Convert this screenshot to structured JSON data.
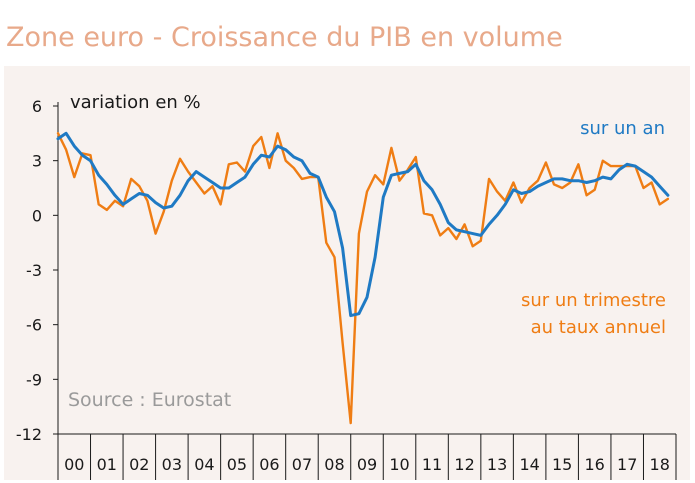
{
  "chart_data": {
    "type": "line",
    "title": "Zone euro - Croissance du PIB en volume",
    "ylabel": "variation en %",
    "source": "Source : Eurostat",
    "ylim": [
      -12,
      6
    ],
    "yticks": [
      6,
      3,
      0,
      -3,
      -6,
      -9,
      -12
    ],
    "ytick_labels": [
      "6",
      "3",
      "0",
      "-3",
      "-6",
      "-9",
      "-12"
    ],
    "x_range": [
      2000.0,
      2019.0
    ],
    "year_labels": [
      "00",
      "01",
      "02",
      "03",
      "04",
      "05",
      "06",
      "07",
      "08",
      "09",
      "10",
      "11",
      "12",
      "13",
      "14",
      "15",
      "16",
      "17",
      "18"
    ],
    "grid": false,
    "colors": {
      "annual": "#1f7ac4",
      "quarterly": "#ef7d14",
      "background": "#f8f2ef",
      "title": "#e8a98a"
    },
    "series": [
      {
        "key": "annual",
        "name": "sur un an",
        "x": [
          2000.0,
          2000.25,
          2000.5,
          2000.75,
          2001.0,
          2001.25,
          2001.5,
          2001.75,
          2002.0,
          2002.25,
          2002.5,
          2002.75,
          2003.0,
          2003.25,
          2003.5,
          2003.75,
          2004.0,
          2004.25,
          2004.5,
          2004.75,
          2005.0,
          2005.25,
          2005.5,
          2005.75,
          2006.0,
          2006.25,
          2006.5,
          2006.75,
          2007.0,
          2007.25,
          2007.5,
          2007.75,
          2008.0,
          2008.25,
          2008.5,
          2008.75,
          2009.0,
          2009.25,
          2009.5,
          2009.75,
          2010.0,
          2010.25,
          2010.5,
          2010.75,
          2011.0,
          2011.25,
          2011.5,
          2011.75,
          2012.0,
          2012.25,
          2012.5,
          2012.75,
          2013.0,
          2013.25,
          2013.5,
          2013.75,
          2014.0,
          2014.25,
          2014.5,
          2014.75,
          2015.0,
          2015.25,
          2015.5,
          2015.75,
          2016.0,
          2016.25,
          2016.5,
          2016.75,
          2017.0,
          2017.25,
          2017.5,
          2017.75,
          2018.0,
          2018.25,
          2018.5,
          2018.75
        ],
        "values": [
          4.2,
          4.5,
          3.8,
          3.3,
          3.0,
          2.2,
          1.7,
          1.1,
          0.6,
          0.9,
          1.2,
          1.1,
          0.7,
          0.4,
          0.5,
          1.1,
          1.9,
          2.4,
          2.1,
          1.8,
          1.5,
          1.5,
          1.8,
          2.1,
          2.8,
          3.3,
          3.2,
          3.8,
          3.6,
          3.2,
          3.0,
          2.3,
          2.1,
          1.0,
          0.2,
          -1.8,
          -5.5,
          -5.4,
          -4.5,
          -2.3,
          1.0,
          2.2,
          2.3,
          2.4,
          2.8,
          1.9,
          1.4,
          0.6,
          -0.4,
          -0.8,
          -0.9,
          -1.0,
          -1.1,
          -0.5,
          0.0,
          0.6,
          1.4,
          1.2,
          1.3,
          1.6,
          1.8,
          2.0,
          2.0,
          1.9,
          1.9,
          1.8,
          1.9,
          2.1,
          2.0,
          2.5,
          2.8,
          2.7,
          2.4,
          2.1,
          1.6,
          1.1
        ]
      },
      {
        "key": "quarterly",
        "name": "sur un trimestre au taux annuel",
        "name_lines": [
          "sur un trimestre",
          "au taux annuel"
        ],
        "x": [
          2000.0,
          2000.25,
          2000.5,
          2000.75,
          2001.0,
          2001.25,
          2001.5,
          2001.75,
          2002.0,
          2002.25,
          2002.5,
          2002.75,
          2003.0,
          2003.25,
          2003.5,
          2003.75,
          2004.0,
          2004.25,
          2004.5,
          2004.75,
          2005.0,
          2005.25,
          2005.5,
          2005.75,
          2006.0,
          2006.25,
          2006.5,
          2006.75,
          2007.0,
          2007.25,
          2007.5,
          2007.75,
          2008.0,
          2008.25,
          2008.5,
          2008.75,
          2009.0,
          2009.25,
          2009.5,
          2009.75,
          2010.0,
          2010.25,
          2010.5,
          2010.75,
          2011.0,
          2011.25,
          2011.5,
          2011.75,
          2012.0,
          2012.25,
          2012.5,
          2012.75,
          2013.0,
          2013.25,
          2013.5,
          2013.75,
          2014.0,
          2014.25,
          2014.5,
          2014.75,
          2015.0,
          2015.25,
          2015.5,
          2015.75,
          2016.0,
          2016.25,
          2016.5,
          2016.75,
          2017.0,
          2017.25,
          2017.5,
          2017.75,
          2018.0,
          2018.25,
          2018.5,
          2018.75
        ],
        "values": [
          4.5,
          3.6,
          2.1,
          3.4,
          3.3,
          0.6,
          0.3,
          0.8,
          0.5,
          2.0,
          1.6,
          0.8,
          -1.0,
          0.2,
          1.9,
          3.1,
          2.4,
          1.8,
          1.2,
          1.6,
          0.6,
          2.8,
          2.9,
          2.4,
          3.8,
          4.3,
          2.6,
          4.5,
          3.0,
          2.6,
          2.0,
          2.1,
          2.1,
          -1.5,
          -2.3,
          -7.0,
          -11.4,
          -1.0,
          1.3,
          2.2,
          1.7,
          3.7,
          1.9,
          2.5,
          3.2,
          0.1,
          0.0,
          -1.1,
          -0.7,
          -1.3,
          -0.5,
          -1.7,
          -1.4,
          2.0,
          1.3,
          0.8,
          1.8,
          0.7,
          1.5,
          1.9,
          2.9,
          1.7,
          1.5,
          1.8,
          2.8,
          1.1,
          1.4,
          3.0,
          2.7,
          2.7,
          2.7,
          2.7,
          1.5,
          1.8,
          0.6,
          0.9
        ]
      }
    ]
  }
}
